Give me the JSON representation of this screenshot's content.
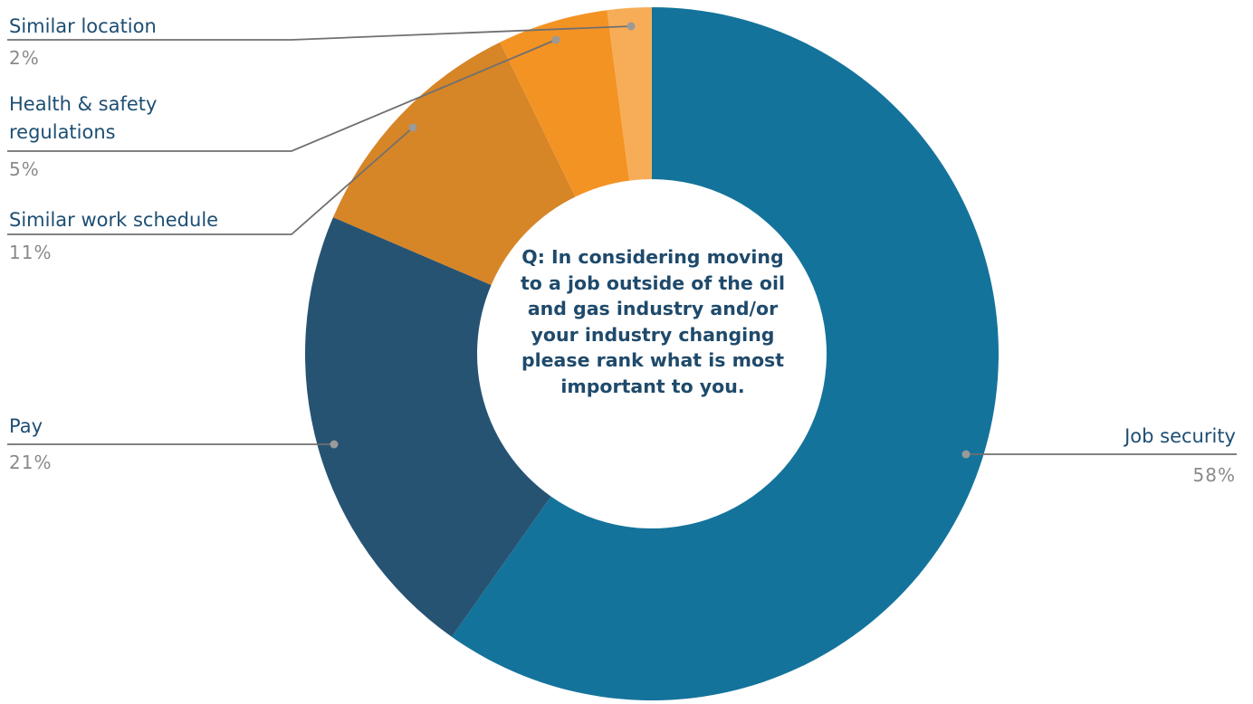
{
  "chart_data": {
    "type": "pie",
    "donut": true,
    "center_text": "Q: In considering moving to a job outside of the oil and gas industry and/or your industry changing please rank what is most important to you.",
    "slices": [
      {
        "label": "Job security",
        "value": 58,
        "value_label": "58%",
        "color": "#14739b"
      },
      {
        "label": "Pay",
        "value": 21,
        "value_label": "21%",
        "color": "#275373"
      },
      {
        "label": "Similar work schedule",
        "value": 11,
        "value_label": "11%",
        "color": "#d68527"
      },
      {
        "label": "Health & safety regulations",
        "value": 5,
        "value_label": "5%",
        "color": "#f39324"
      },
      {
        "label": "Similar location",
        "value": 2,
        "value_label": "2%",
        "color": "#f7ad57"
      }
    ],
    "legend": "none",
    "leader_line_color": "#707070"
  }
}
